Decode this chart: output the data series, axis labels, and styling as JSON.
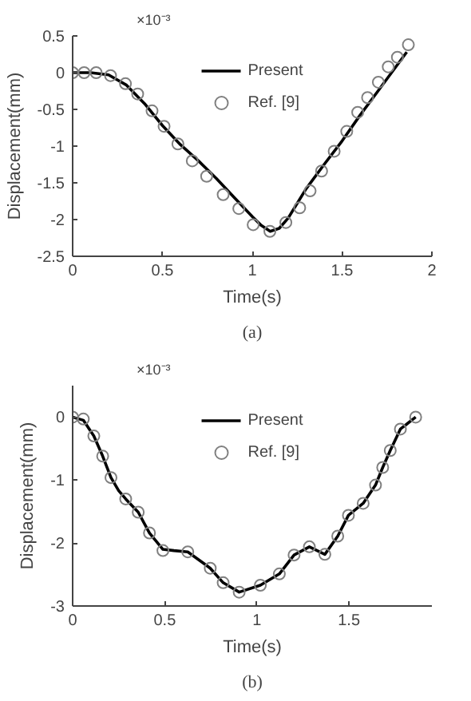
{
  "chart_data": [
    {
      "type": "line",
      "xlabel": "Time(s)",
      "ylabel": "Displacement(mm)",
      "annotations": [
        "×10⁻³",
        "(a)"
      ],
      "xlim": [
        0,
        2
      ],
      "xticks": [
        0,
        0.5,
        1,
        1.5,
        2
      ],
      "ylim": [
        -2.5,
        0.5
      ],
      "yticks": [
        -2.5,
        -2,
        -1.5,
        -1,
        -0.5,
        0,
        0.5
      ],
      "grid": false,
      "legend": "top",
      "series": [
        {
          "name": "Present",
          "color": "#000000",
          "marker": "none",
          "line_style": "solid",
          "x": [
            0,
            0.1,
            0.2,
            0.3,
            0.4,
            0.5,
            0.6,
            0.7,
            0.8,
            0.9,
            1.0,
            1.05,
            1.1,
            1.15,
            1.2,
            1.3,
            1.4,
            1.5,
            1.6,
            1.7,
            1.86
          ],
          "values": [
            0,
            0,
            -0.03,
            -0.17,
            -0.42,
            -0.72,
            -0.98,
            -1.2,
            -1.44,
            -1.7,
            -1.96,
            -2.08,
            -2.16,
            -2.12,
            -1.98,
            -1.58,
            -1.25,
            -0.93,
            -0.58,
            -0.25,
            0.28
          ]
        },
        {
          "name": "Ref. [9]",
          "type": "scatter",
          "color": "#808080",
          "marker": "circle",
          "x": [
            0,
            0.064,
            0.131,
            0.211,
            0.294,
            0.362,
            0.442,
            0.509,
            0.586,
            0.666,
            0.746,
            0.838,
            0.925,
            1.005,
            1.098,
            1.187,
            1.264,
            1.322,
            1.386,
            1.456,
            1.526,
            1.587,
            1.642,
            1.702,
            1.757,
            1.808,
            1.869
          ],
          "values": [
            0,
            0,
            0,
            -0.04,
            -0.15,
            -0.29,
            -0.52,
            -0.73,
            -0.97,
            -1.2,
            -1.41,
            -1.66,
            -1.85,
            -2.07,
            -2.16,
            -2.04,
            -1.84,
            -1.61,
            -1.34,
            -1.07,
            -0.8,
            -0.54,
            -0.34,
            -0.13,
            0.08,
            0.21,
            0.38
          ]
        }
      ]
    },
    {
      "type": "line",
      "xlabel": "Time(s)",
      "ylabel": "Displacement(mm)",
      "annotations": [
        "×10⁻³",
        "(b)"
      ],
      "xlim": [
        0,
        1.95
      ],
      "xticks": [
        0,
        0.5,
        1,
        1.5
      ],
      "ylim": [
        -3,
        0.5
      ],
      "yticks": [
        -3,
        -2,
        -1,
        0
      ],
      "grid": false,
      "legend": "top",
      "series": [
        {
          "name": "Present",
          "color": "#000000",
          "marker": "none",
          "line_style": "solid",
          "x": [
            0,
            0.058,
            0.115,
            0.163,
            0.208,
            0.25,
            0.288,
            0.356,
            0.417,
            0.49,
            0.55,
            0.625,
            0.747,
            0.817,
            0.904,
            1.019,
            1.122,
            1.202,
            1.285,
            1.369,
            1.439,
            1.497,
            1.577,
            1.644,
            1.683,
            1.724,
            1.779,
            1.862
          ],
          "values": [
            0,
            -0.05,
            -0.3,
            -0.62,
            -0.96,
            -1.17,
            -1.3,
            -1.51,
            -1.84,
            -2.1,
            -2.12,
            -2.14,
            -2.4,
            -2.63,
            -2.78,
            -2.67,
            -2.49,
            -2.19,
            -2.06,
            -2.18,
            -1.89,
            -1.56,
            -1.37,
            -1.08,
            -0.8,
            -0.53,
            -0.19,
            0
          ]
        },
        {
          "name": "Ref. [9]",
          "type": "scatter",
          "color": "#808080",
          "marker": "circle",
          "x": [
            0,
            0.058,
            0.115,
            0.163,
            0.208,
            0.288,
            0.356,
            0.417,
            0.49,
            0.625,
            0.747,
            0.817,
            0.904,
            1.019,
            1.122,
            1.202,
            1.285,
            1.369,
            1.439,
            1.497,
            1.577,
            1.644,
            1.683,
            1.724,
            1.779,
            1.862
          ],
          "values": [
            0,
            -0.03,
            -0.3,
            -0.62,
            -0.96,
            -1.3,
            -1.51,
            -1.84,
            -2.12,
            -2.14,
            -2.4,
            -2.63,
            -2.78,
            -2.67,
            -2.49,
            -2.19,
            -2.06,
            -2.18,
            -1.89,
            -1.56,
            -1.37,
            -1.08,
            -0.8,
            -0.53,
            -0.19,
            0
          ]
        }
      ]
    }
  ]
}
